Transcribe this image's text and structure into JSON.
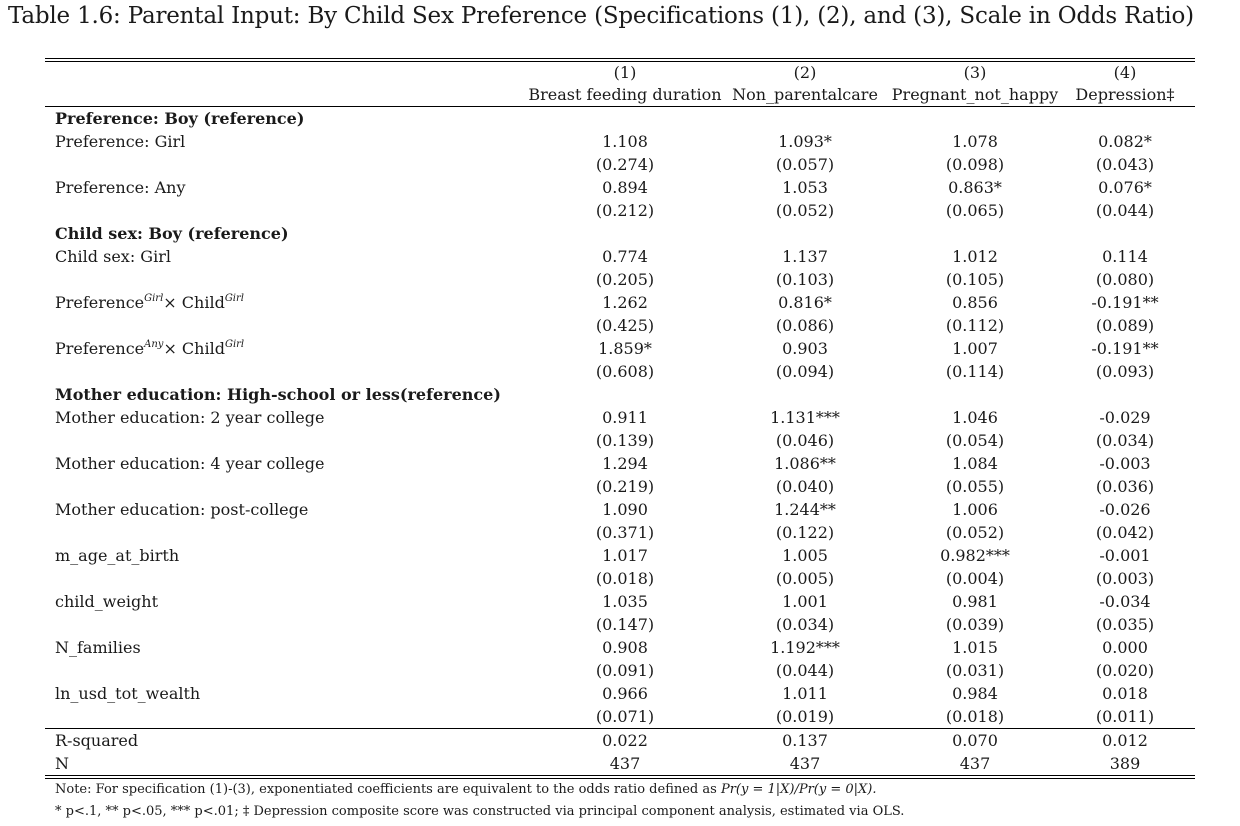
{
  "caption": "Table 1.6: Parental Input: By Child Sex Preference (Specifications (1), (2), and (3), Scale in Odds Ratio)",
  "columns": [
    {
      "num": "(1)",
      "name": "Breast feeding duration"
    },
    {
      "num": "(2)",
      "name": "Non_parentalcare"
    },
    {
      "num": "(3)",
      "name": "Pregnant_not_happy"
    },
    {
      "num": "(4)",
      "name": "Depression‡"
    }
  ],
  "rows": [
    {
      "type": "section",
      "label": "Preference: Boy (reference)"
    },
    {
      "type": "coef",
      "label": "Preference: Girl",
      "vals": [
        "1.108",
        "1.093*",
        "1.078",
        "0.082*"
      ]
    },
    {
      "type": "se",
      "vals": [
        "(0.274)",
        "(0.057)",
        "(0.098)",
        "(0.043)"
      ]
    },
    {
      "type": "coef",
      "label": "Preference: Any",
      "vals": [
        "0.894",
        "1.053",
        "0.863*",
        "0.076*"
      ]
    },
    {
      "type": "se",
      "vals": [
        "(0.212)",
        "(0.052)",
        "(0.065)",
        "(0.044)"
      ]
    },
    {
      "type": "section",
      "label": "Child sex: Boy (reference)"
    },
    {
      "type": "coef",
      "label": "Child sex: Girl",
      "vals": [
        "0.774",
        "1.137",
        "1.012",
        "0.114"
      ]
    },
    {
      "type": "se",
      "vals": [
        "(0.205)",
        "(0.103)",
        "(0.105)",
        "(0.080)"
      ]
    },
    {
      "type": "coef",
      "label_parts": [
        "Preference",
        "Girl",
        "× Child",
        "Girl"
      ],
      "vals": [
        "1.262",
        "0.816*",
        "0.856",
        "-0.191**"
      ]
    },
    {
      "type": "se",
      "vals": [
        "(0.425)",
        "(0.086)",
        "(0.112)",
        "(0.089)"
      ]
    },
    {
      "type": "coef",
      "label_parts": [
        "Preference",
        "Any",
        "× Child",
        "Girl"
      ],
      "vals": [
        "1.859*",
        "0.903",
        "1.007",
        "-0.191**"
      ]
    },
    {
      "type": "se",
      "vals": [
        "(0.608)",
        "(0.094)",
        "(0.114)",
        "(0.093)"
      ]
    },
    {
      "type": "section",
      "label": "Mother education: High-school or less(reference)"
    },
    {
      "type": "coef",
      "label": "Mother education: 2 year college",
      "vals": [
        "0.911",
        "1.131***",
        "1.046",
        "-0.029"
      ]
    },
    {
      "type": "se",
      "vals": [
        "(0.139)",
        "(0.046)",
        "(0.054)",
        "(0.034)"
      ]
    },
    {
      "type": "coef",
      "label": "Mother education: 4 year college",
      "vals": [
        "1.294",
        "1.086**",
        "1.084",
        "-0.003"
      ]
    },
    {
      "type": "se",
      "vals": [
        "(0.219)",
        "(0.040)",
        "(0.055)",
        "(0.036)"
      ]
    },
    {
      "type": "coef",
      "label": "Mother education: post-college",
      "vals": [
        "1.090",
        "1.244**",
        "1.006",
        "-0.026"
      ]
    },
    {
      "type": "se",
      "vals": [
        "(0.371)",
        "(0.122)",
        "(0.052)",
        "(0.042)"
      ]
    },
    {
      "type": "coef",
      "label": "m_age_at_birth",
      "vals": [
        "1.017",
        "1.005",
        "0.982***",
        "-0.001"
      ]
    },
    {
      "type": "se",
      "vals": [
        "(0.018)",
        "(0.005)",
        "(0.004)",
        "(0.003)"
      ]
    },
    {
      "type": "coef",
      "label": "child_weight",
      "vals": [
        "1.035",
        "1.001",
        "0.981",
        "-0.034"
      ]
    },
    {
      "type": "se",
      "vals": [
        "(0.147)",
        "(0.034)",
        "(0.039)",
        "(0.035)"
      ]
    },
    {
      "type": "coef",
      "label": "N_families",
      "vals": [
        "0.908",
        "1.192***",
        "1.015",
        "0.000"
      ]
    },
    {
      "type": "se",
      "vals": [
        "(0.091)",
        "(0.044)",
        "(0.031)",
        "(0.020)"
      ]
    },
    {
      "type": "coef",
      "label": "ln_usd_tot_wealth",
      "vals": [
        "0.966",
        "1.011",
        "0.984",
        "0.018"
      ]
    },
    {
      "type": "se",
      "vals": [
        "(0.071)",
        "(0.019)",
        "(0.018)",
        "(0.011)"
      ]
    }
  ],
  "stats": [
    {
      "label": "R-squared",
      "vals": [
        "0.022",
        "0.137",
        "0.070",
        "0.012"
      ]
    },
    {
      "label": "N",
      "vals": [
        "437",
        "437",
        "437",
        "389"
      ]
    }
  ],
  "notes": {
    "line1_text": "Note: For specification (1)-(3), exponentiated coefficients are equivalent to the odds ratio defined as",
    "line1_formula": "Pr(y = 1|X)/Pr(y = 0|X).",
    "line2": "* p<.1, ** p<.05, *** p<.01; ‡ Depression composite score was constructed via principal component analysis, estimated via OLS."
  }
}
